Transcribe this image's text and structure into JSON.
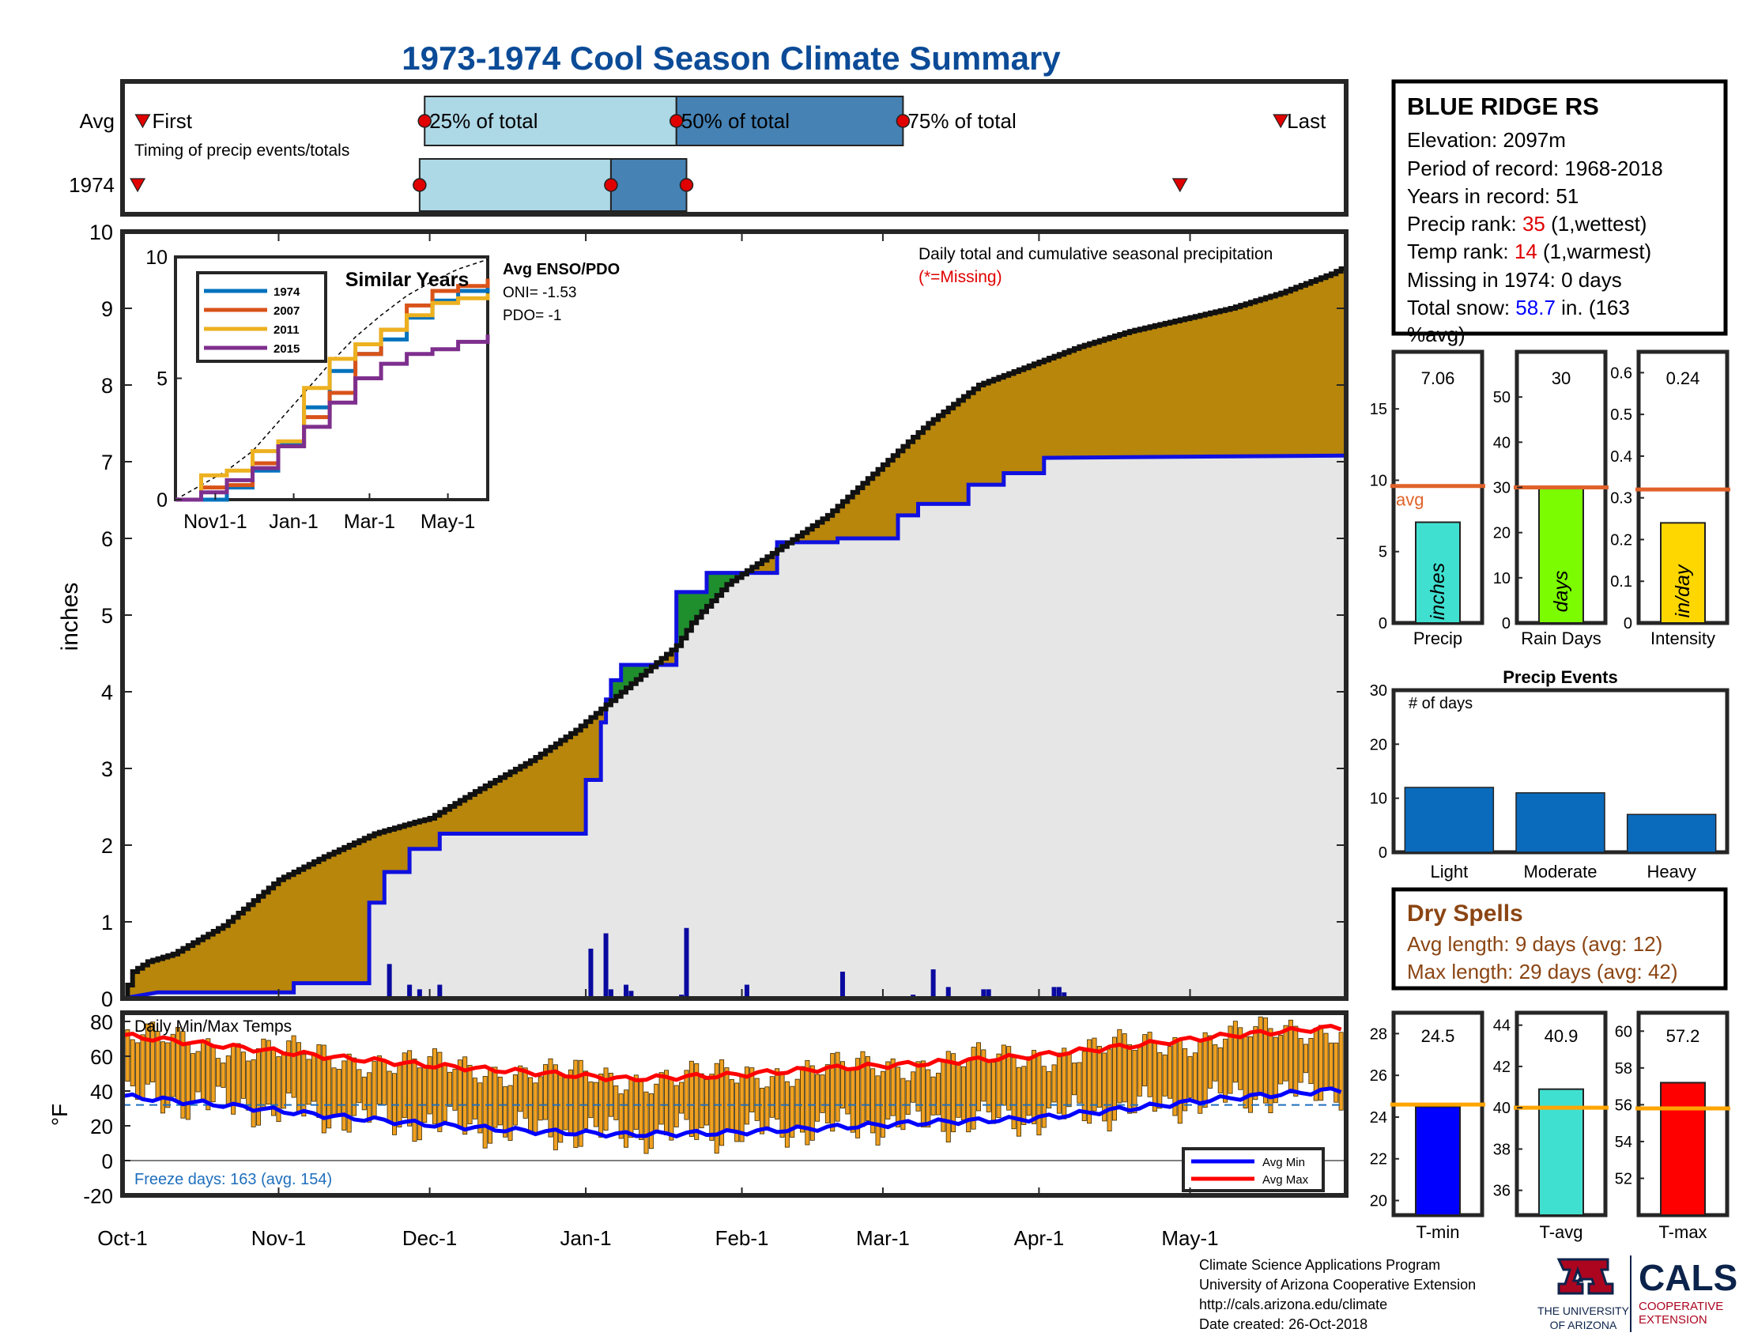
{
  "title": "1973-1974 Cool Season Climate Summary",
  "colors": {
    "title": "#0b4b97",
    "cum_fill": "#b8860b",
    "excess_fill": "#1f8f2e",
    "avg_cum_fill": "#e6e6e6",
    "avg_line": "#1010e0",
    "daily_bar": "#0a0aa0",
    "q_light": "#add8e6",
    "q_dark": "#4682b4",
    "marker": "#e00000",
    "avgref": "#e0622a",
    "temp_bar": "#f0a020",
    "min_line": "#0000ff",
    "max_line": "#ff0000",
    "ref_line": "#ffa500",
    "dry": "#8b4513",
    "events": "#0a6bbd",
    "freeze": "#1f6fbd"
  },
  "timing_panel": {
    "rows": [
      "Avg",
      "1974"
    ],
    "caption": "Timing of precip events/totals",
    "labels": {
      "first": "First",
      "q25": "25% of total",
      "q50": "50% of total",
      "q75": "75% of total",
      "last": "Last"
    },
    "avg": {
      "first": 4,
      "q25": 60,
      "q50": 110,
      "q75": 155,
      "last": 230
    },
    "1974": {
      "first": 3,
      "q25": 59,
      "q50": 97,
      "q75": 112,
      "last": 210
    }
  },
  "station": {
    "name": "BLUE RIDGE RS",
    "elevation_label": "Elevation: 2097m",
    "period_label": "Period of record: 1968-2018",
    "years_label": "Years in record: 51",
    "precip_rank_prefix": "Precip rank: ",
    "precip_rank": "35",
    "precip_rank_suffix": " (1,wettest)",
    "temp_rank_prefix": "Temp rank: ",
    "temp_rank": "14",
    "temp_rank_suffix": " (1,warmest)",
    "missing_label": "Missing in 1974: 0 days",
    "snow_prefix": "Total snow: ",
    "snow_value": "58.7",
    "snow_suffix": " in. (163",
    "snow_suffix2": "%avg)"
  },
  "main_chart": {
    "ylabel": "inches",
    "annotation": "Daily total and cumulative seasonal precipitation",
    "missing_note": "(*=Missing)",
    "y_ticks": [
      0,
      1,
      2,
      3,
      4,
      5,
      6,
      7,
      8,
      9,
      10
    ],
    "x_ticks": [
      "Oct-1",
      "Nov-1",
      "Dec-1",
      "Jan-1",
      "Feb-1",
      "Mar-1",
      "Apr-1",
      "May-1"
    ]
  },
  "chart_data": [
    {
      "type": "area",
      "description_id": "cumulative_precip",
      "xlabel": "",
      "ylabel": "inches",
      "x_ticks": [
        "Oct-1",
        "Nov-1",
        "Dec-1",
        "Jan-1",
        "Feb-1",
        "Mar-1",
        "Apr-1",
        "May-1"
      ],
      "ylim": [
        0,
        10
      ],
      "series": [
        {
          "name": "",
          "x": [
            0,
            2,
            5,
            10,
            20,
            31,
            40,
            50,
            58,
            61,
            70,
            81,
            90,
            100,
            110,
            113,
            120,
            130,
            140,
            150,
            160,
            170,
            180,
            190,
            200,
            210,
            220,
            230,
            240,
            243
          ],
          "values": [
            0,
            0.35,
            0.48,
            0.58,
            0.95,
            1.55,
            1.85,
            2.15,
            2.3,
            2.35,
            2.7,
            3.1,
            3.5,
            4.05,
            4.6,
            4.9,
            5.4,
            5.85,
            6.3,
            6.9,
            7.5,
            8,
            8.25,
            8.5,
            8.7,
            8.85,
            9.0,
            9.2,
            9.45,
            9.55
          ]
        },
        {
          "name": "",
          "x": [
            0,
            7,
            34,
            34,
            49,
            49,
            52,
            52,
            57,
            57,
            63,
            63,
            92,
            92,
            95,
            95,
            96,
            96,
            97,
            97,
            99,
            99,
            110,
            110,
            116,
            116,
            130,
            130,
            142,
            142,
            154,
            154,
            158,
            158,
            168,
            168,
            175,
            175,
            183,
            183,
            243
          ],
          "values": [
            0,
            0.08,
            0.08,
            0.2,
            0.2,
            1.25,
            1.25,
            1.65,
            1.65,
            1.95,
            1.95,
            2.15,
            2.15,
            2.85,
            2.85,
            3.6,
            3.6,
            3.9,
            3.9,
            4.15,
            4.15,
            4.35,
            4.35,
            5.3,
            5.3,
            5.55,
            5.55,
            5.95,
            5.95,
            6.0,
            6.0,
            6.3,
            6.3,
            6.45,
            6.45,
            6.7,
            6.7,
            6.85,
            6.85,
            7.05,
            7.08
          ]
        }
      ],
      "daily_precip": {
        "x": [
          53,
          57,
          59,
          63,
          93,
          96,
          97,
          100,
          101,
          111,
          112,
          124,
          143,
          157,
          161,
          164,
          171,
          172,
          185,
          186,
          187
        ],
        "values": [
          0.45,
          0.18,
          0.12,
          0.18,
          0.65,
          0.85,
          0.12,
          0.18,
          0.1,
          0.05,
          0.92,
          0.18,
          0.35,
          0.05,
          0.38,
          0.15,
          0.12,
          0.12,
          0.15,
          0.15,
          0.08
        ]
      }
    },
    {
      "type": "line",
      "description_id": "similar_years",
      "title": "Similar Years",
      "x_ticks": [
        "Nov1-1",
        "Jan-1",
        "Mar-1",
        "May-1"
      ],
      "ylim": [
        0,
        10
      ],
      "y_ticks": [
        0,
        5,
        10
      ],
      "x": [
        0,
        20,
        40,
        60,
        80,
        100,
        120,
        140,
        160,
        180,
        200,
        220,
        243
      ],
      "series": [
        {
          "name": "1974",
          "color": "#0072bd",
          "values": [
            0,
            0,
            0.5,
            1.2,
            2.3,
            3.8,
            5.3,
            6.0,
            6.6,
            7.5,
            8.2,
            8.6,
            8.8
          ]
        },
        {
          "name": "2007",
          "color": "#d95319",
          "values": [
            0,
            0.5,
            0.6,
            1.5,
            2.2,
            3.4,
            4.4,
            6.0,
            7.0,
            8.0,
            8.6,
            8.8,
            9.1
          ]
        },
        {
          "name": "2011",
          "color": "#edb120",
          "values": [
            0,
            1.0,
            1.2,
            2.0,
            2.4,
            4.6,
            5.8,
            6.4,
            7.0,
            7.6,
            8.1,
            8.3,
            8.5
          ]
        },
        {
          "name": "2015",
          "color": "#7e2f8e",
          "values": [
            0,
            0.3,
            0.8,
            1.3,
            2.2,
            3.0,
            4.0,
            5.0,
            5.6,
            6.0,
            6.2,
            6.5,
            6.8
          ]
        }
      ],
      "avg_curve": [
        0,
        0.6,
        1.2,
        2.0,
        3.2,
        4.4,
        5.6,
        6.7,
        7.6,
        8.4,
        9.0,
        9.5,
        9.9
      ]
    },
    {
      "type": "bar",
      "description_id": "precip_summary",
      "categories": [
        "Precip",
        "Rain Days",
        "Intensity"
      ],
      "values": [
        7.06,
        30,
        0.24
      ],
      "value_labels": [
        "7.06",
        "30",
        "0.24"
      ],
      "averages": [
        9.6,
        30,
        0.32
      ],
      "avg_label": "avg",
      "bar_labels": [
        "inches",
        "days",
        "in/day"
      ],
      "bar_colors": [
        "#40e0d0",
        "#7cfc00",
        "#ffd700"
      ],
      "ylims": [
        [
          0,
          19
        ],
        [
          0,
          60
        ],
        [
          0,
          0.65
        ]
      ],
      "y_ticks": [
        [
          0,
          5,
          10,
          15
        ],
        [
          0,
          10,
          20,
          30,
          40,
          50
        ],
        [
          0,
          0.1,
          0.2,
          0.3,
          0.4,
          0.5,
          0.6
        ]
      ]
    },
    {
      "type": "bar",
      "description_id": "precip_events",
      "title": "Precip Events",
      "ylabel": "# of days",
      "categories": [
        "Light",
        "Moderate",
        "Heavy"
      ],
      "values": [
        12,
        11,
        7
      ],
      "ylim": [
        0,
        30
      ],
      "y_ticks": [
        0,
        10,
        20,
        30
      ]
    },
    {
      "type": "bar",
      "description_id": "daily_temps",
      "title": "Daily Min/Max Temps",
      "ylabel": "°F",
      "ylim": [
        -20,
        85
      ],
      "y_ticks": [
        -20,
        0,
        20,
        40,
        60,
        80
      ],
      "x_ticks": [
        "Oct-1",
        "Nov-1",
        "Dec-1",
        "Jan-1",
        "Feb-1",
        "Mar-1",
        "Apr-1",
        "May-1"
      ],
      "freeze_line": 32,
      "legend": [
        "Avg Min",
        "Avg Max"
      ],
      "avg_min": {
        "x": [
          0,
          20,
          40,
          60,
          80,
          100,
          120,
          140,
          160,
          180,
          200,
          220,
          243
        ],
        "values": [
          37,
          32,
          26,
          21,
          17,
          15,
          16,
          19,
          22,
          24,
          30,
          36,
          41
        ]
      },
      "avg_max": {
        "x": [
          0,
          20,
          40,
          60,
          80,
          100,
          120,
          140,
          160,
          180,
          200,
          220,
          243
        ],
        "values": [
          72,
          66,
          60,
          55,
          51,
          47,
          49,
          53,
          56,
          60,
          66,
          72,
          77
        ]
      },
      "freeze_note": "Freeze days: 163 (avg. 154)"
    },
    {
      "type": "bar",
      "description_id": "temp_summary",
      "categories": [
        "T-min",
        "T-avg",
        "T-max"
      ],
      "values": [
        24.5,
        40.9,
        57.2
      ],
      "value_labels": [
        "24.5",
        "40.9",
        "57.2"
      ],
      "averages": [
        24.6,
        40.0,
        55.8
      ],
      "bar_colors": [
        "#0000ff",
        "#40e0d0",
        "#ff0000"
      ],
      "ylims": [
        [
          19.3,
          29
        ],
        [
          34.8,
          44.6
        ],
        [
          50,
          61
        ]
      ],
      "y_ticks": [
        [
          20,
          22,
          24,
          26,
          28
        ],
        [
          36,
          38,
          40,
          42,
          44
        ],
        [
          52,
          54,
          56,
          58,
          60
        ]
      ]
    }
  ],
  "dry_spells": {
    "title": "Dry Spells",
    "avg_label": "Avg length: 9 days (avg: 12)",
    "max_label": "Max length: 29 days (avg: 42)"
  },
  "footer": {
    "line1": "Climate Science Applications Program",
    "line2": "University of Arizona Cooperative Extension",
    "line3": "http://cals.arizona.edu/climate",
    "line4": " Date created: 26-Oct-2018"
  },
  "logos": {
    "ua_line1": "THE UNIVERSITY",
    "ua_line2": "OF ARIZONA",
    "cals": "CALS",
    "cals_line1": "COOPERATIVE",
    "cals_line2": "EXTENSION"
  }
}
